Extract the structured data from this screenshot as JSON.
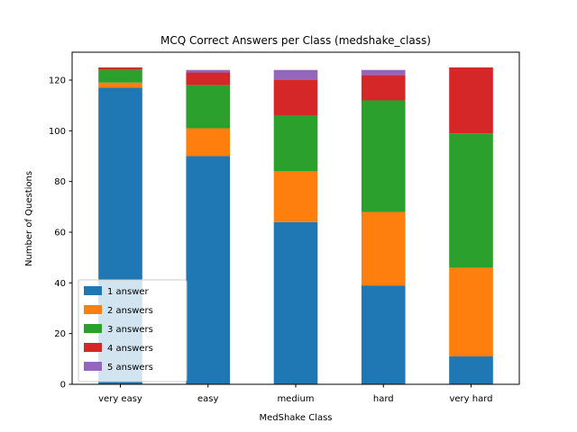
{
  "chart_data": {
    "type": "bar",
    "stacked": true,
    "title": "MCQ Correct Answers per Class (medshake_class)",
    "xlabel": "MedShake Class",
    "ylabel": "Number of Questions",
    "categories": [
      "very easy",
      "easy",
      "medium",
      "hard",
      "very hard"
    ],
    "ylim": [
      0,
      131
    ],
    "yticks": [
      0,
      20,
      40,
      60,
      80,
      100,
      120
    ],
    "grid": false,
    "legend_position": "lower-left",
    "series": [
      {
        "name": "1 answer",
        "color": "#1f77b4",
        "values": [
          117,
          90,
          64,
          39,
          11
        ]
      },
      {
        "name": "2 answers",
        "color": "#ff7f0e",
        "values": [
          2,
          11,
          20,
          29,
          35
        ]
      },
      {
        "name": "3 answers",
        "color": "#2ca02c",
        "values": [
          5,
          17,
          22,
          44,
          53
        ]
      },
      {
        "name": "4 answers",
        "color": "#d62728",
        "values": [
          1,
          5,
          14,
          10,
          26
        ]
      },
      {
        "name": "5 answers",
        "color": "#9467bd",
        "values": [
          0,
          1,
          4,
          2,
          0
        ]
      }
    ]
  }
}
